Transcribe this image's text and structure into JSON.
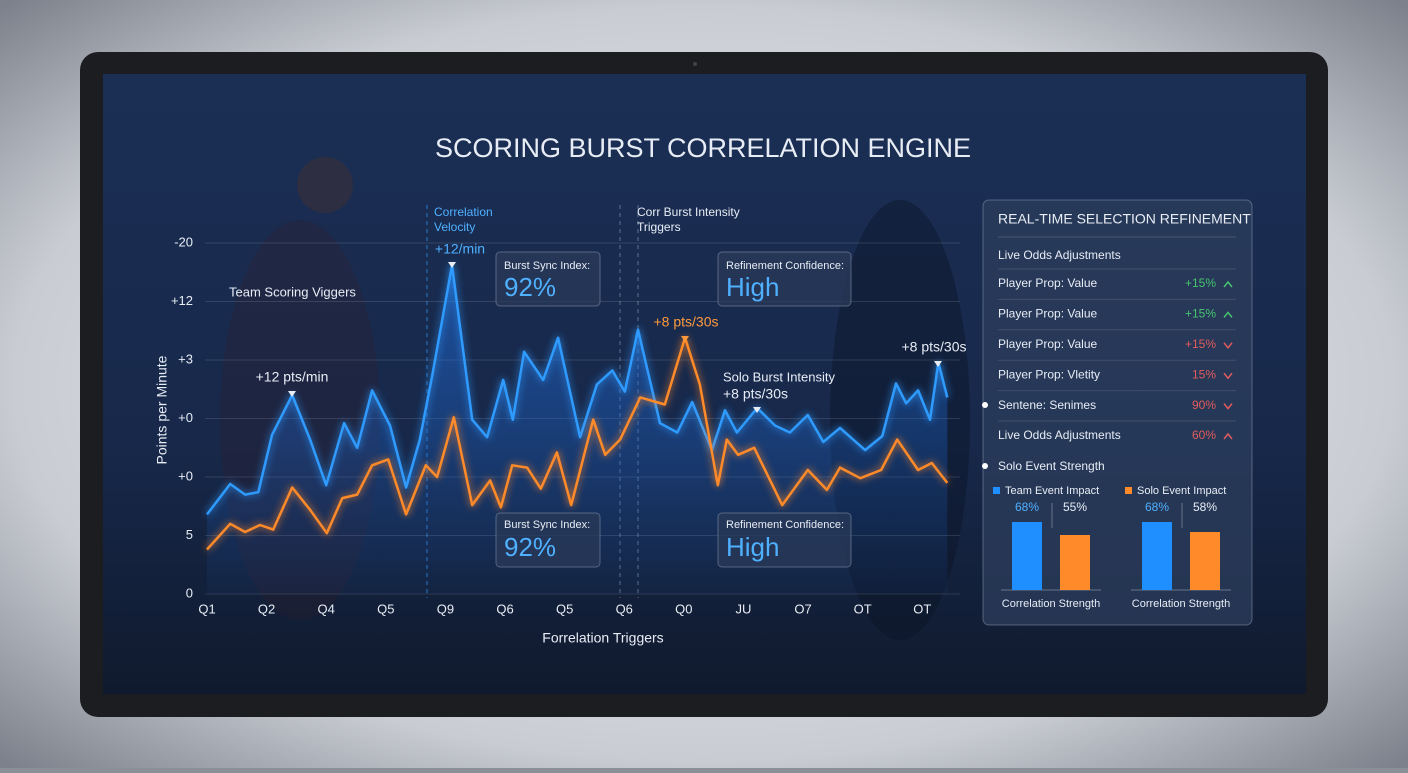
{
  "title": "SCORING BURST CORRELATION ENGINE",
  "chart_data": [
    {
      "type": "line",
      "ylabel": "Points per Minute",
      "xlabel": "Forrelation Triggers",
      "xlim": [
        0,
        12.7
      ],
      "xticks": [
        {
          "value": 0,
          "label": "Q1"
        },
        {
          "value": 1,
          "label": "Q2"
        },
        {
          "value": 2,
          "label": "Q4"
        },
        {
          "value": 3,
          "label": "Q5"
        },
        {
          "value": 4,
          "label": "Q9"
        },
        {
          "value": 5,
          "label": "Q6"
        },
        {
          "value": 6,
          "label": "Q5"
        },
        {
          "value": 7,
          "label": "Q6"
        },
        {
          "value": 8,
          "label": "Q0"
        },
        {
          "value": 9,
          "label": "JU"
        },
        {
          "value": 10,
          "label": "O7"
        },
        {
          "value": 11,
          "label": "OT"
        },
        {
          "value": 12,
          "label": "OT"
        }
      ],
      "ylim": [
        0,
        30
      ],
      "yticks": [
        0,
        5,
        {
          "value": 10,
          "label": "+0"
        },
        {
          "value": 15,
          "label": "+0"
        },
        {
          "value": 20,
          "label": "+3"
        },
        {
          "value": 25,
          "label": "+12"
        },
        {
          "value": 30,
          "label": "-20"
        }
      ],
      "grid": true,
      "series": [
        {
          "color": "#2f9bff",
          "x": [
            0.0,
            0.39,
            0.64,
            0.86,
            1.09,
            1.43,
            1.73,
            2.0,
            2.3,
            2.52,
            2.77,
            3.07,
            3.34,
            3.57,
            3.78,
            4.11,
            4.45,
            4.7,
            4.97,
            5.13,
            5.32,
            5.64,
            5.89,
            6.26,
            6.54,
            6.8,
            7.01,
            7.23,
            7.6,
            7.89,
            8.14,
            8.47,
            8.69,
            8.89,
            9.23,
            9.53,
            9.78,
            10.08,
            10.34,
            10.62,
            11.04,
            11.33,
            11.56,
            11.73,
            11.93,
            12.13,
            12.27,
            12.42
          ],
          "values": [
            6.8,
            9.4,
            8.5,
            8.7,
            13.6,
            17.0,
            13.2,
            9.3,
            14.6,
            12.5,
            17.4,
            14.4,
            9.1,
            13.2,
            18.7,
            28.1,
            14.9,
            13.4,
            18.3,
            14.9,
            20.7,
            18.3,
            21.9,
            13.4,
            17.9,
            19.1,
            17.3,
            22.6,
            14.6,
            13.8,
            16.4,
            12.3,
            15.7,
            13.8,
            15.9,
            14.4,
            13.8,
            15.3,
            13.0,
            14.2,
            12.3,
            13.5,
            18.0,
            16.3,
            17.4,
            14.9,
            19.8,
            16.8
          ]
        },
        {
          "color": "#ff8a2a",
          "x": [
            0.0,
            0.39,
            0.64,
            0.89,
            1.11,
            1.43,
            1.73,
            2.01,
            2.27,
            2.52,
            2.77,
            3.04,
            3.34,
            3.67,
            3.86,
            4.14,
            4.45,
            4.75,
            4.93,
            5.12,
            5.37,
            5.6,
            5.87,
            6.11,
            6.48,
            6.68,
            6.93,
            7.27,
            7.68,
            8.02,
            8.27,
            8.57,
            8.72,
            8.91,
            9.18,
            9.65,
            10.08,
            10.4,
            10.62,
            10.96,
            11.31,
            11.58,
            11.93,
            12.16,
            12.42
          ],
          "values": [
            3.8,
            6.0,
            5.3,
            5.9,
            5.5,
            9.1,
            7.2,
            5.2,
            8.2,
            8.5,
            11.0,
            11.5,
            6.8,
            11.0,
            10.0,
            15.1,
            7.6,
            9.7,
            7.4,
            11.0,
            10.8,
            9.0,
            12.1,
            7.6,
            14.9,
            11.9,
            13.2,
            16.8,
            16.2,
            21.9,
            17.9,
            9.3,
            13.2,
            11.9,
            12.5,
            7.6,
            10.6,
            8.9,
            10.8,
            9.9,
            10.6,
            13.2,
            10.6,
            11.2,
            9.5
          ]
        }
      ],
      "annotations": {
        "team": "Team Scoring Viggers",
        "peak1": "+12 pts/min",
        "peak2": "+12/min",
        "peak3": "+8 pts/30s",
        "solo": [
          "Solo Burst Intensity",
          "+8 pts/30s"
        ],
        "peak4": "+8 pts/30s",
        "velocity": [
          "Correlation",
          "Velocity"
        ],
        "triggers": [
          "Corr Burst Intensity",
          "Triggers"
        ]
      },
      "cards": [
        {
          "label": "Burst Sync Index:",
          "value": "92%"
        },
        {
          "label": "Refinement Confidence:",
          "value": "High"
        },
        {
          "label": "Burst Sync Index:",
          "value": "92%"
        },
        {
          "label": "Refinement Confidence:",
          "value": "High"
        }
      ]
    },
    {
      "type": "bar",
      "categories": [
        "Correlation Strength",
        "Correlation Strength"
      ],
      "ylim": [
        0,
        100
      ],
      "series": [
        {
          "name": "Team Event Impact",
          "color": "#1f8fff",
          "values": [
            68,
            68
          ],
          "value_labels": [
            "68%",
            "68%"
          ]
        },
        {
          "name": "Solo Event Impact",
          "color": "#ff8a2a",
          "values": [
            55,
            58
          ],
          "value_labels": [
            "55%",
            "58%"
          ]
        }
      ]
    }
  ],
  "panel": {
    "title": "REAL-TIME SELECTION REFINEMENT",
    "subtitle": "Live Odds Adjustments",
    "rows": [
      {
        "label": "Player Prop: Value",
        "value": "+15%",
        "trend": "up",
        "color": "#46c46e"
      },
      {
        "label": "Player Prop: Value",
        "value": "+15%",
        "trend": "up",
        "color": "#46c46e"
      },
      {
        "label": "Player Prop: Value",
        "value": "+15%",
        "trend": "down",
        "color": "#e25c5c"
      },
      {
        "label": "Player Prop: Vletity",
        "value": "15%",
        "trend": "down",
        "color": "#e25c5c"
      },
      {
        "label": "Sentene: Senimes",
        "value": "90%",
        "trend": "down",
        "color": "#e25c5c"
      },
      {
        "label": "Live Odds Adjustments",
        "value": "60%",
        "trend": "up",
        "color": "#e25c5c"
      }
    ],
    "section": "Solo Event Strength"
  }
}
